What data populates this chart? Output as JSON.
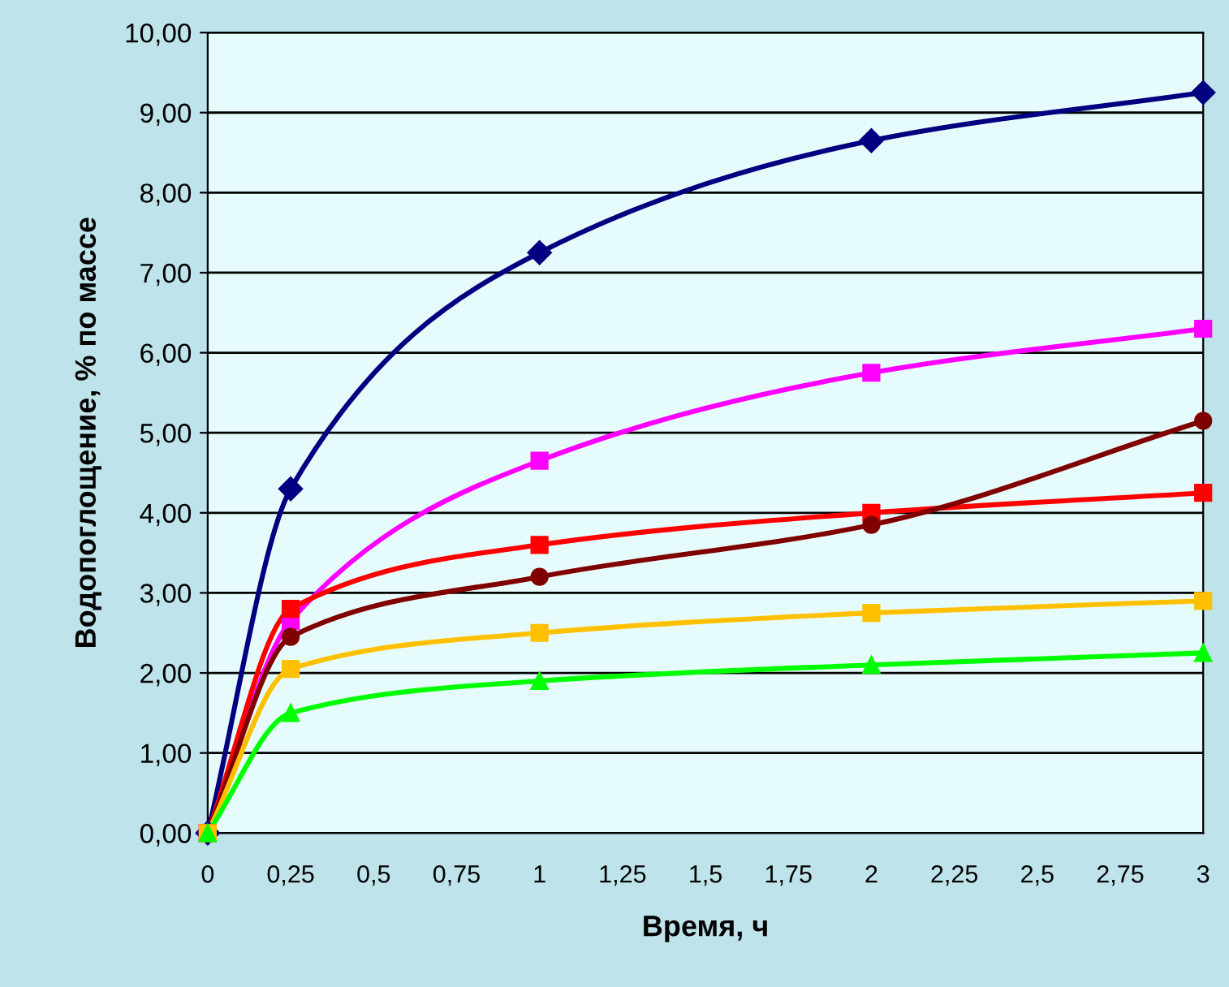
{
  "chart_data": {
    "type": "line",
    "xlabel": "Время, ч",
    "ylabel": "Водопоглощение, % по массе",
    "x": [
      0,
      0.25,
      1,
      2,
      3
    ],
    "series": [
      {
        "color": "#000080",
        "marker": "diamond",
        "values": [
          0,
          4.3,
          7.25,
          8.65,
          9.25
        ]
      },
      {
        "color": "#ff00ff",
        "marker": "square",
        "values": [
          0,
          2.65,
          4.65,
          5.75,
          6.3
        ]
      },
      {
        "color": "#ff0000",
        "marker": "square",
        "values": [
          0,
          2.8,
          3.6,
          4.0,
          4.25
        ]
      },
      {
        "color": "#800000",
        "marker": "circle",
        "values": [
          0,
          2.45,
          3.2,
          3.85,
          5.15
        ]
      },
      {
        "color": "#ffc000",
        "marker": "square",
        "values": [
          0,
          2.05,
          2.5,
          2.75,
          2.9
        ]
      },
      {
        "color": "#00ff00",
        "marker": "triangle",
        "values": [
          0,
          1.5,
          1.9,
          2.1,
          2.25
        ]
      }
    ],
    "xlim": [
      0,
      3
    ],
    "xticks": [
      0,
      {
        "value": 0.25,
        "label": "0,25"
      },
      {
        "value": 0.5,
        "label": "0,5"
      },
      {
        "value": 0.75,
        "label": "0,75"
      },
      1,
      {
        "value": 1.25,
        "label": "1,25"
      },
      {
        "value": 1.5,
        "label": "1,5"
      },
      {
        "value": 1.75,
        "label": "1,75"
      },
      2,
      {
        "value": 2.25,
        "label": "2,25"
      },
      {
        "value": 2.5,
        "label": "2,5"
      },
      {
        "value": 2.75,
        "label": "2,75"
      },
      3
    ],
    "ylim": [
      0,
      10
    ],
    "yticks": [
      {
        "value": 0,
        "label": "0,00"
      },
      {
        "value": 1,
        "label": "1,00"
      },
      {
        "value": 2,
        "label": "2,00"
      },
      {
        "value": 3,
        "label": "3,00"
      },
      {
        "value": 4,
        "label": "4,00"
      },
      {
        "value": 5,
        "label": "5,00"
      },
      {
        "value": 6,
        "label": "6,00"
      },
      {
        "value": 7,
        "label": "7,00"
      },
      {
        "value": 8,
        "label": "8,00"
      },
      {
        "value": 9,
        "label": "9,00"
      },
      {
        "value": 10,
        "label": "10,00"
      }
    ],
    "grid": "y",
    "line_style": "solid"
  }
}
